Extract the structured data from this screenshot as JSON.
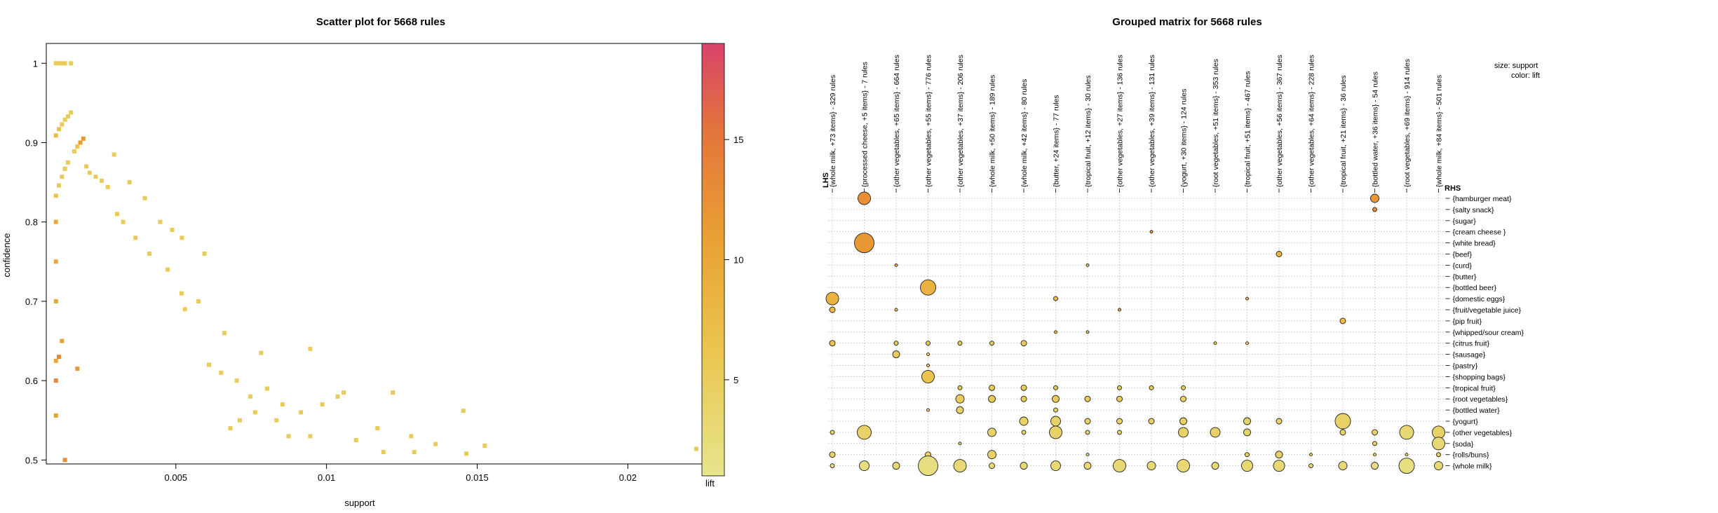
{
  "chart_data": [
    {
      "type": "scatter",
      "title": "Scatter plot for 5668 rules",
      "xlabel": "support",
      "ylabel": "confidence",
      "xlim": [
        0.0007,
        0.0229
      ],
      "ylim": [
        0.495,
        1.025
      ],
      "x_ticks": [
        0.005,
        0.01,
        0.015,
        0.02
      ],
      "x_tick_labels": [
        "0.005",
        "0.01",
        "0.015",
        "0.02"
      ],
      "y_ticks": [
        0.5,
        0.6,
        0.7,
        0.8,
        0.9,
        1.0
      ],
      "y_tick_labels": [
        "0.5",
        "0.6",
        "0.7",
        "0.8",
        "0.9",
        "1"
      ],
      "color_label": "lift",
      "color_range": [
        1,
        19
      ],
      "color_ticks": [
        5,
        10,
        15
      ],
      "color_tick_labels": [
        "5",
        "10",
        "15"
      ],
      "points": [
        {
          "x": 0.00102,
          "y": 1.0,
          "lift": 5
        },
        {
          "x": 0.00112,
          "y": 1.0,
          "lift": 5
        },
        {
          "x": 0.00122,
          "y": 1.0,
          "lift": 5
        },
        {
          "x": 0.00132,
          "y": 1.0,
          "lift": 5
        },
        {
          "x": 0.00152,
          "y": 1.0,
          "lift": 5
        },
        {
          "x": 0.00102,
          "y": 0.909,
          "lift": 7
        },
        {
          "x": 0.00112,
          "y": 0.917,
          "lift": 6
        },
        {
          "x": 0.00122,
          "y": 0.923,
          "lift": 5
        },
        {
          "x": 0.00132,
          "y": 0.929,
          "lift": 5
        },
        {
          "x": 0.00142,
          "y": 0.933,
          "lift": 5
        },
        {
          "x": 0.00152,
          "y": 0.938,
          "lift": 5
        },
        {
          "x": 0.00163,
          "y": 0.889,
          "lift": 5
        },
        {
          "x": 0.00173,
          "y": 0.895,
          "lift": 6
        },
        {
          "x": 0.00183,
          "y": 0.9,
          "lift": 10
        },
        {
          "x": 0.00193,
          "y": 0.905,
          "lift": 11
        },
        {
          "x": 0.00295,
          "y": 0.885,
          "lift": 5
        },
        {
          "x": 0.00102,
          "y": 0.833,
          "lift": 6
        },
        {
          "x": 0.00112,
          "y": 0.846,
          "lift": 5
        },
        {
          "x": 0.00122,
          "y": 0.857,
          "lift": 5
        },
        {
          "x": 0.00132,
          "y": 0.867,
          "lift": 5
        },
        {
          "x": 0.00142,
          "y": 0.875,
          "lift": 5
        },
        {
          "x": 0.00203,
          "y": 0.87,
          "lift": 5
        },
        {
          "x": 0.00214,
          "y": 0.862,
          "lift": 5
        },
        {
          "x": 0.00234,
          "y": 0.857,
          "lift": 5
        },
        {
          "x": 0.00254,
          "y": 0.852,
          "lift": 5
        },
        {
          "x": 0.00274,
          "y": 0.844,
          "lift": 5
        },
        {
          "x": 0.00346,
          "y": 0.85,
          "lift": 5
        },
        {
          "x": 0.00397,
          "y": 0.83,
          "lift": 5
        },
        {
          "x": 0.00448,
          "y": 0.8,
          "lift": 5
        },
        {
          "x": 0.00488,
          "y": 0.79,
          "lift": 5
        },
        {
          "x": 0.00305,
          "y": 0.81,
          "lift": 5
        },
        {
          "x": 0.0052,
          "y": 0.78,
          "lift": 5
        },
        {
          "x": 0.00595,
          "y": 0.76,
          "lift": 5
        },
        {
          "x": 0.00519,
          "y": 0.71,
          "lift": 5
        },
        {
          "x": 0.00575,
          "y": 0.7,
          "lift": 5
        },
        {
          "x": 0.00661,
          "y": 0.66,
          "lift": 5
        },
        {
          "x": 0.0053,
          "y": 0.69,
          "lift": 5
        },
        {
          "x": 0.00473,
          "y": 0.74,
          "lift": 5
        },
        {
          "x": 0.00412,
          "y": 0.76,
          "lift": 5
        },
        {
          "x": 0.00366,
          "y": 0.78,
          "lift": 5
        },
        {
          "x": 0.00325,
          "y": 0.8,
          "lift": 5
        },
        {
          "x": 0.0061,
          "y": 0.62,
          "lift": 5
        },
        {
          "x": 0.0065,
          "y": 0.61,
          "lift": 5
        },
        {
          "x": 0.00702,
          "y": 0.6,
          "lift": 5
        },
        {
          "x": 0.00747,
          "y": 0.58,
          "lift": 5
        },
        {
          "x": 0.00783,
          "y": 0.635,
          "lift": 5
        },
        {
          "x": 0.00803,
          "y": 0.59,
          "lift": 5
        },
        {
          "x": 0.00763,
          "y": 0.56,
          "lift": 5
        },
        {
          "x": 0.00712,
          "y": 0.55,
          "lift": 5
        },
        {
          "x": 0.00681,
          "y": 0.54,
          "lift": 5
        },
        {
          "x": 0.00834,
          "y": 0.55,
          "lift": 5
        },
        {
          "x": 0.00854,
          "y": 0.57,
          "lift": 5
        },
        {
          "x": 0.00874,
          "y": 0.53,
          "lift": 5
        },
        {
          "x": 0.00915,
          "y": 0.56,
          "lift": 5
        },
        {
          "x": 0.00946,
          "y": 0.64,
          "lift": 5
        },
        {
          "x": 0.00946,
          "y": 0.53,
          "lift": 5
        },
        {
          "x": 0.00986,
          "y": 0.57,
          "lift": 5
        },
        {
          "x": 0.01037,
          "y": 0.58,
          "lift": 5
        },
        {
          "x": 0.01057,
          "y": 0.585,
          "lift": 5
        },
        {
          "x": 0.01098,
          "y": 0.525,
          "lift": 5
        },
        {
          "x": 0.01169,
          "y": 0.54,
          "lift": 5
        },
        {
          "x": 0.01189,
          "y": 0.51,
          "lift": 5
        },
        {
          "x": 0.0122,
          "y": 0.585,
          "lift": 5
        },
        {
          "x": 0.01281,
          "y": 0.53,
          "lift": 5
        },
        {
          "x": 0.01291,
          "y": 0.51,
          "lift": 5
        },
        {
          "x": 0.01362,
          "y": 0.52,
          "lift": 5
        },
        {
          "x": 0.01454,
          "y": 0.562,
          "lift": 5
        },
        {
          "x": 0.01464,
          "y": 0.508,
          "lift": 5
        },
        {
          "x": 0.01525,
          "y": 0.518,
          "lift": 5
        },
        {
          "x": 0.02227,
          "y": 0.514,
          "lift": 5
        },
        {
          "x": 0.00102,
          "y": 0.6,
          "lift": 13
        },
        {
          "x": 0.00112,
          "y": 0.63,
          "lift": 13
        },
        {
          "x": 0.00102,
          "y": 0.556,
          "lift": 10
        },
        {
          "x": 0.00132,
          "y": 0.5,
          "lift": 12
        },
        {
          "x": 0.00122,
          "y": 0.65,
          "lift": 10
        },
        {
          "x": 0.00173,
          "y": 0.615,
          "lift": 11
        },
        {
          "x": 0.00102,
          "y": 0.7,
          "lift": 9
        },
        {
          "x": 0.00102,
          "y": 0.75,
          "lift": 9
        },
        {
          "x": 0.00102,
          "y": 0.8,
          "lift": 9
        },
        {
          "x": 0.00102,
          "y": 0.625,
          "lift": 9
        }
      ]
    },
    {
      "type": "grouped-matrix",
      "title": "Grouped matrix for 5668 rules",
      "lhs_label": "LHS",
      "rhs_label": "RHS",
      "legend_size": "size: support",
      "legend_color": "color: lift",
      "lhs": [
        "{whole milk, +73 items} - 329 rules",
        "{processed cheese, +5 items} - 7 rules",
        "{other vegetables, +65 items} - 664 rules",
        "{other vegetables, +55 items} - 776 rules",
        "{other vegetables, +37 items} - 206 rules",
        "{whole milk, +50 items} - 189 rules",
        "{whole milk, +42 items} - 80 rules",
        "{butter, +24 items} - 77 rules",
        "{tropical fruit, +12 items} - 30 rules",
        "{other vegetables, +27 items} - 136 rules",
        "{other vegetables, +39 items} - 131 rules",
        "{yogurt, +30 items} - 124 rules",
        "{root vegetables, +51 items} - 353 rules",
        "{tropical fruit, +51 items} - 467 rules",
        "{other vegetables, +56 items} - 367 rules",
        "{other vegetables, +64 items} - 228 rules",
        "{tropical fruit, +21 items} - 36 rules",
        "{bottled water, +36 items} - 54 rules",
        "{root vegetables, +69 items} - 914 rules",
        "{whole milk, +84 items} - 501 rules"
      ],
      "rhs": [
        "{hamburger meat}",
        "{salty snack}",
        "{sugar}",
        "{cream cheese }",
        "{white bread}",
        "{beef}",
        "{curd}",
        "{butter}",
        "{bottled beer}",
        "{domestic eggs}",
        "{fruit/vegetable juice}",
        "{pip fruit}",
        "{whipped/sour cream}",
        "{citrus fruit}",
        "{sausage}",
        "{pastry}",
        "{shopping bags}",
        "{tropical fruit}",
        "{root vegetables}",
        "{bottled water}",
        "{yogurt}",
        "{other vegetables}",
        "{soda}",
        "{rolls/buns}",
        "{whole milk}"
      ],
      "cells": [
        [
          1,
          0,
          9,
          12
        ],
        [
          1,
          4,
          14,
          11
        ],
        [
          17,
          0,
          6,
          11
        ],
        [
          17,
          1,
          3,
          12
        ],
        [
          10,
          3,
          2,
          11
        ],
        [
          14,
          5,
          4,
          8
        ],
        [
          8,
          6,
          2,
          6
        ],
        [
          2,
          6,
          2,
          8
        ],
        [
          0,
          9,
          9,
          8
        ],
        [
          0,
          10,
          4,
          7
        ],
        [
          3,
          8,
          11,
          8
        ],
        [
          7,
          9,
          3,
          7
        ],
        [
          13,
          9,
          2,
          7
        ],
        [
          9,
          10,
          2,
          8
        ],
        [
          16,
          11,
          4,
          7
        ],
        [
          7,
          12,
          2,
          6
        ],
        [
          8,
          12,
          2,
          6
        ],
        [
          2,
          10,
          2,
          5
        ],
        [
          0,
          13,
          4,
          6
        ],
        [
          2,
          13,
          3,
          5
        ],
        [
          3,
          13,
          3,
          5
        ],
        [
          4,
          13,
          3,
          5
        ],
        [
          5,
          13,
          3,
          5
        ],
        [
          6,
          13,
          4,
          5
        ],
        [
          12,
          13,
          2,
          5
        ],
        [
          13,
          13,
          2,
          5
        ],
        [
          2,
          14,
          5,
          5
        ],
        [
          3,
          14,
          2,
          4
        ],
        [
          3,
          15,
          2,
          4
        ],
        [
          3,
          16,
          9,
          6
        ],
        [
          4,
          17,
          3,
          5
        ],
        [
          5,
          17,
          4,
          5
        ],
        [
          6,
          17,
          4,
          5
        ],
        [
          7,
          17,
          3,
          5
        ],
        [
          9,
          17,
          3,
          5
        ],
        [
          10,
          17,
          3,
          5
        ],
        [
          11,
          17,
          3,
          5
        ],
        [
          4,
          18,
          6,
          5
        ],
        [
          5,
          18,
          5,
          5
        ],
        [
          6,
          18,
          4,
          5
        ],
        [
          7,
          18,
          5,
          5
        ],
        [
          8,
          18,
          4,
          5
        ],
        [
          9,
          18,
          4,
          5
        ],
        [
          11,
          18,
          4,
          4
        ],
        [
          3,
          19,
          2,
          4
        ],
        [
          4,
          19,
          5,
          4
        ],
        [
          7,
          19,
          3,
          4
        ],
        [
          6,
          20,
          6,
          4
        ],
        [
          7,
          20,
          7,
          4
        ],
        [
          8,
          20,
          4,
          4
        ],
        [
          9,
          20,
          4,
          4
        ],
        [
          10,
          20,
          4,
          4
        ],
        [
          11,
          20,
          5,
          4
        ],
        [
          13,
          20,
          5,
          4
        ],
        [
          14,
          20,
          4,
          4
        ],
        [
          16,
          20,
          11,
          4
        ],
        [
          0,
          21,
          3,
          4
        ],
        [
          1,
          21,
          10,
          4
        ],
        [
          5,
          21,
          6,
          4
        ],
        [
          6,
          21,
          3,
          4
        ],
        [
          7,
          21,
          9,
          4
        ],
        [
          8,
          21,
          3,
          4
        ],
        [
          9,
          21,
          3,
          4
        ],
        [
          11,
          21,
          7,
          4
        ],
        [
          12,
          21,
          7,
          4
        ],
        [
          13,
          21,
          5,
          4
        ],
        [
          16,
          21,
          4,
          4
        ],
        [
          17,
          21,
          4,
          4
        ],
        [
          18,
          21,
          10,
          3
        ],
        [
          19,
          21,
          9,
          4
        ],
        [
          4,
          22,
          2,
          4
        ],
        [
          17,
          22,
          3,
          4
        ],
        [
          19,
          22,
          9,
          3
        ],
        [
          0,
          23,
          4,
          4
        ],
        [
          3,
          23,
          4,
          4
        ],
        [
          5,
          23,
          6,
          4
        ],
        [
          8,
          23,
          2,
          4
        ],
        [
          13,
          23,
          3,
          4
        ],
        [
          14,
          23,
          5,
          4
        ],
        [
          15,
          23,
          2,
          4
        ],
        [
          17,
          23,
          2,
          4
        ],
        [
          18,
          23,
          2,
          4
        ],
        [
          19,
          23,
          3,
          4
        ],
        [
          0,
          24,
          3,
          3
        ],
        [
          1,
          24,
          7,
          2
        ],
        [
          2,
          24,
          5,
          3
        ],
        [
          3,
          24,
          14,
          2
        ],
        [
          4,
          24,
          9,
          3
        ],
        [
          5,
          24,
          4,
          3
        ],
        [
          6,
          24,
          5,
          3
        ],
        [
          7,
          24,
          7,
          3
        ],
        [
          8,
          24,
          5,
          3
        ],
        [
          9,
          24,
          9,
          3
        ],
        [
          10,
          24,
          6,
          3
        ],
        [
          11,
          24,
          9,
          3
        ],
        [
          12,
          24,
          5,
          3
        ],
        [
          13,
          24,
          8,
          3
        ],
        [
          14,
          24,
          8,
          3
        ],
        [
          15,
          24,
          3,
          3
        ],
        [
          16,
          24,
          6,
          3
        ],
        [
          17,
          24,
          5,
          2
        ],
        [
          18,
          24,
          11,
          2
        ],
        [
          19,
          24,
          6,
          3
        ]
      ]
    }
  ]
}
